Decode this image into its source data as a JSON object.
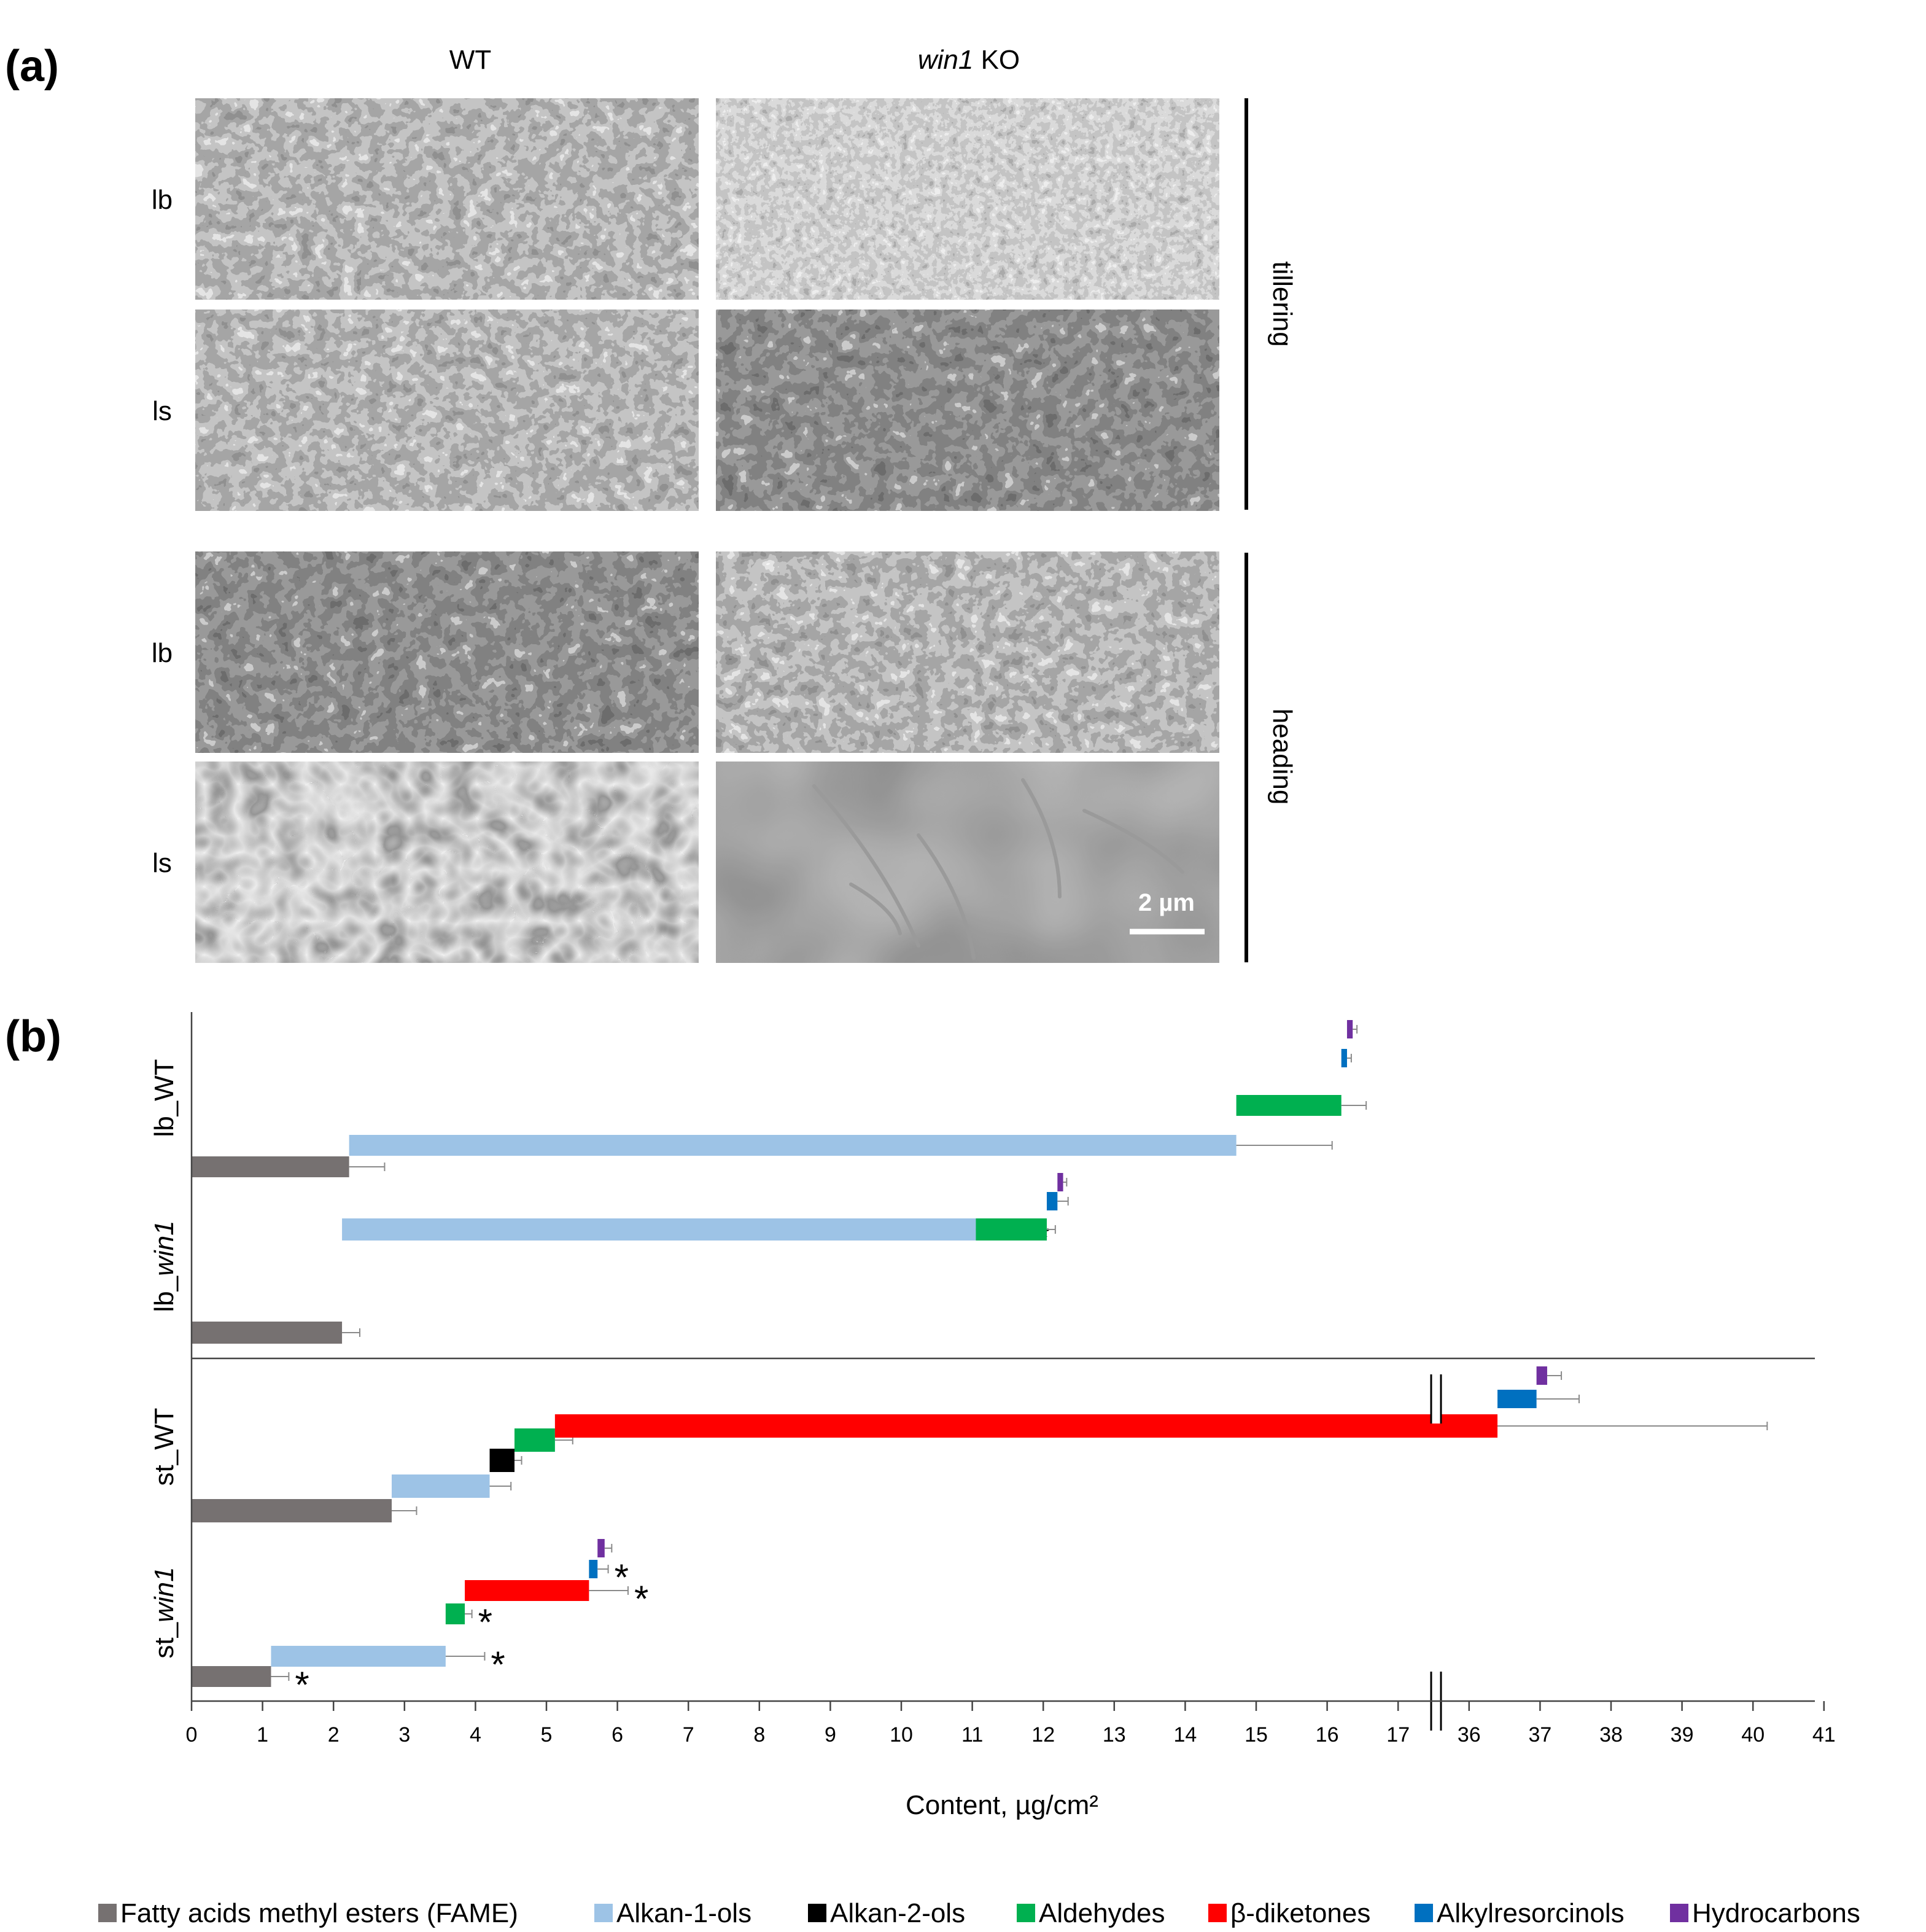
{
  "panel_a": {
    "label": "(a)",
    "columns": [
      {
        "text": "WT",
        "italic": ""
      },
      {
        "text": " KO",
        "italic": "win1"
      }
    ],
    "rows": [
      {
        "label": "lb",
        "stage": "tillering",
        "wt_texture": "flakes",
        "ko_texture": "dense-flakes"
      },
      {
        "label": "ls",
        "stage": "tillering",
        "wt_texture": "flakes",
        "ko_texture": "flakes-dark"
      },
      {
        "label": "lb",
        "stage": "heading",
        "wt_texture": "flakes-dark",
        "ko_texture": "flakes"
      },
      {
        "label": "ls",
        "stage": "heading",
        "wt_texture": "tubules",
        "ko_texture": "smooth"
      }
    ],
    "stages": [
      "tillering",
      "heading"
    ],
    "scale_bar": "2 µm"
  },
  "chart_data": {
    "label": "(b)",
    "type": "bar",
    "orientation": "horizontal",
    "stacked": true,
    "xlabel": "Content, µg/cm²",
    "x_ticks": [
      "0",
      "1",
      "2",
      "3",
      "4",
      "5",
      "6",
      "7",
      "8",
      "9",
      "10",
      "11",
      "12",
      "13",
      "14",
      "15",
      "16",
      "17",
      "36",
      "37",
      "38",
      "39",
      "40",
      "41"
    ],
    "axis_break": [
      17.5,
      35.5
    ],
    "series": [
      {
        "name": "Fatty acids methyl esters (FAME)",
        "color": "#767171"
      },
      {
        "name": "Alkan-1-ols",
        "color": "#9dc3e6"
      },
      {
        "name": "Alkan-2-ols",
        "color": "#000000"
      },
      {
        "name": "Aldehydes",
        "color": "#00b050"
      },
      {
        "name": "β-diketones",
        "color": "#ff0000"
      },
      {
        "name": "Alkylresorcinols",
        "color": "#0070c0"
      },
      {
        "name": "Hydrocarbons",
        "color": "#7030a0"
      }
    ],
    "groups": [
      {
        "name": "lb_WT",
        "italic": "",
        "bars": [
          {
            "series": 0,
            "start": 0,
            "end": 2.22,
            "err": 0.5,
            "sig": false
          },
          {
            "series": 1,
            "start": 2.22,
            "end": 14.72,
            "err": 1.35,
            "sig": false
          },
          {
            "series": 3,
            "start": 14.72,
            "end": 16.2,
            "err": 0.35,
            "sig": false
          },
          {
            "series": 5,
            "start": 16.2,
            "end": 16.28,
            "err": 0.06,
            "sig": false
          },
          {
            "series": 6,
            "start": 16.28,
            "end": 16.36,
            "err": 0.06,
            "sig": false
          }
        ]
      },
      {
        "name": "lb_",
        "italic": "win1",
        "bars": [
          {
            "series": 0,
            "start": 0,
            "end": 2.12,
            "err": 0.25,
            "sig": false
          },
          {
            "series": 1,
            "start": 2.12,
            "end": 11.05,
            "err": 0.75,
            "sig": true
          },
          {
            "series": 3,
            "start": 11.05,
            "end": 12.05,
            "err": 0.12,
            "sig": false
          },
          {
            "series": 5,
            "start": 12.05,
            "end": 12.2,
            "err": 0.15,
            "sig": false
          },
          {
            "series": 6,
            "start": 12.2,
            "end": 12.28,
            "err": 0.05,
            "sig": false
          }
        ]
      },
      {
        "name": "st_WT",
        "italic": "",
        "bars": [
          {
            "series": 0,
            "start": 0,
            "end": 2.82,
            "err": 0.35,
            "sig": false
          },
          {
            "series": 1,
            "start": 2.82,
            "end": 4.2,
            "err": 0.3,
            "sig": false
          },
          {
            "series": 2,
            "start": 4.2,
            "end": 4.55,
            "err": 0.1,
            "sig": false
          },
          {
            "series": 3,
            "start": 4.55,
            "end": 5.12,
            "err": 0.25,
            "sig": false
          },
          {
            "series": 4,
            "start": 5.12,
            "end": 36.4,
            "err": 3.8,
            "sig": false
          },
          {
            "series": 5,
            "start": 36.4,
            "end": 36.95,
            "err": 0.6,
            "sig": false
          },
          {
            "series": 6,
            "start": 36.95,
            "end": 37.1,
            "err": 0.2,
            "sig": false
          }
        ]
      },
      {
        "name": "st_",
        "italic": "win1",
        "bars": [
          {
            "series": 0,
            "start": 0,
            "end": 1.12,
            "err": 0.25,
            "sig": true
          },
          {
            "series": 1,
            "start": 1.12,
            "end": 3.58,
            "err": 0.55,
            "sig": true
          },
          {
            "series": 3,
            "start": 3.58,
            "end": 3.85,
            "err": 0.1,
            "sig": true
          },
          {
            "series": 4,
            "start": 3.85,
            "end": 5.6,
            "err": 0.55,
            "sig": true
          },
          {
            "series": 5,
            "start": 5.6,
            "end": 5.72,
            "err": 0.15,
            "sig": true
          },
          {
            "series": 6,
            "start": 5.72,
            "end": 5.82,
            "err": 0.1,
            "sig": false
          }
        ]
      }
    ],
    "significance_marker": "*",
    "legend_position": "bottom"
  }
}
